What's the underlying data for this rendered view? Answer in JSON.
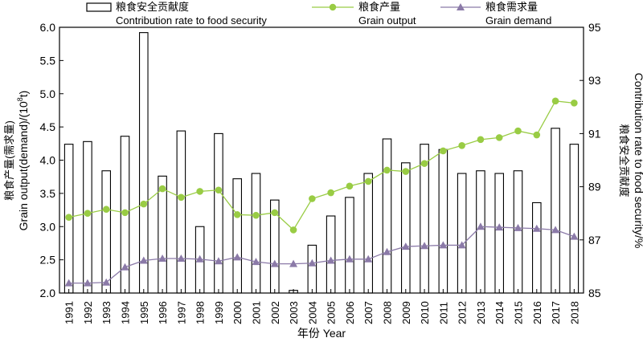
{
  "chart_data": {
    "type": "bar+line",
    "categories": [
      "1991",
      "1992",
      "1993",
      "1994",
      "1995",
      "1996",
      "1997",
      "1998",
      "1999",
      "2000",
      "2001",
      "2002",
      "2003",
      "2004",
      "2005",
      "2006",
      "2007",
      "2008",
      "2009",
      "2010",
      "2011",
      "2012",
      "2013",
      "2014",
      "2015",
      "2016",
      "2017",
      "2018"
    ],
    "series": [
      {
        "name": "Contribution rate to food security",
        "name_cn": "粮食安全贡献度",
        "type": "bar",
        "axis": "right",
        "values": [
          90.6,
          90.7,
          89.6,
          90.9,
          94.8,
          89.4,
          91.1,
          87.5,
          91.0,
          89.3,
          89.5,
          88.5,
          85.1,
          86.8,
          87.9,
          88.6,
          89.5,
          90.8,
          89.9,
          90.6,
          90.4,
          89.5,
          89.6,
          89.5,
          89.6,
          88.4,
          91.2,
          90.6
        ]
      },
      {
        "name": "Grain output",
        "name_cn": "粮食产量",
        "type": "line",
        "marker": "circle",
        "color": "#99cc44",
        "axis": "left",
        "values": [
          3.14,
          3.2,
          3.26,
          3.21,
          3.34,
          3.57,
          3.44,
          3.53,
          3.55,
          3.18,
          3.17,
          3.21,
          2.95,
          3.42,
          3.51,
          3.61,
          3.68,
          3.85,
          3.83,
          3.95,
          4.14,
          4.22,
          4.31,
          4.34,
          4.44,
          4.38,
          4.89,
          4.86
        ]
      },
      {
        "name": "Grain demand",
        "name_cn": "粮食需求量",
        "type": "line",
        "marker": "triangle",
        "color": "#8b7aa8",
        "axis": "left",
        "values": [
          2.15,
          2.15,
          2.16,
          2.39,
          2.49,
          2.52,
          2.52,
          2.51,
          2.48,
          2.54,
          2.47,
          2.44,
          2.44,
          2.45,
          2.49,
          2.51,
          2.51,
          2.62,
          2.7,
          2.71,
          2.72,
          2.72,
          3.0,
          2.99,
          2.98,
          2.97,
          2.95,
          2.85
        ]
      }
    ],
    "xlabel": "年份 Year",
    "ylabel_left_cn": "粮食产量(需求量)",
    "ylabel_left_en": "Grain output(demand)/(10",
    "ylabel_left_sup": "8",
    "ylabel_left_tail": "t)",
    "ylabel_right_cn": "粮食安全贡献度",
    "ylabel_right_en": "Contribution rate to food security/%",
    "ylim_left": [
      2.0,
      6.0
    ],
    "yticks_left": [
      "2.0",
      "2.5",
      "3.0",
      "3.5",
      "4.0",
      "4.5",
      "5.0",
      "5.5",
      "6.0"
    ],
    "ylim_right": [
      85,
      95
    ],
    "yticks_right": [
      "85",
      "87",
      "89",
      "91",
      "93",
      "95"
    ],
    "grid": false,
    "legend_position": "top"
  }
}
